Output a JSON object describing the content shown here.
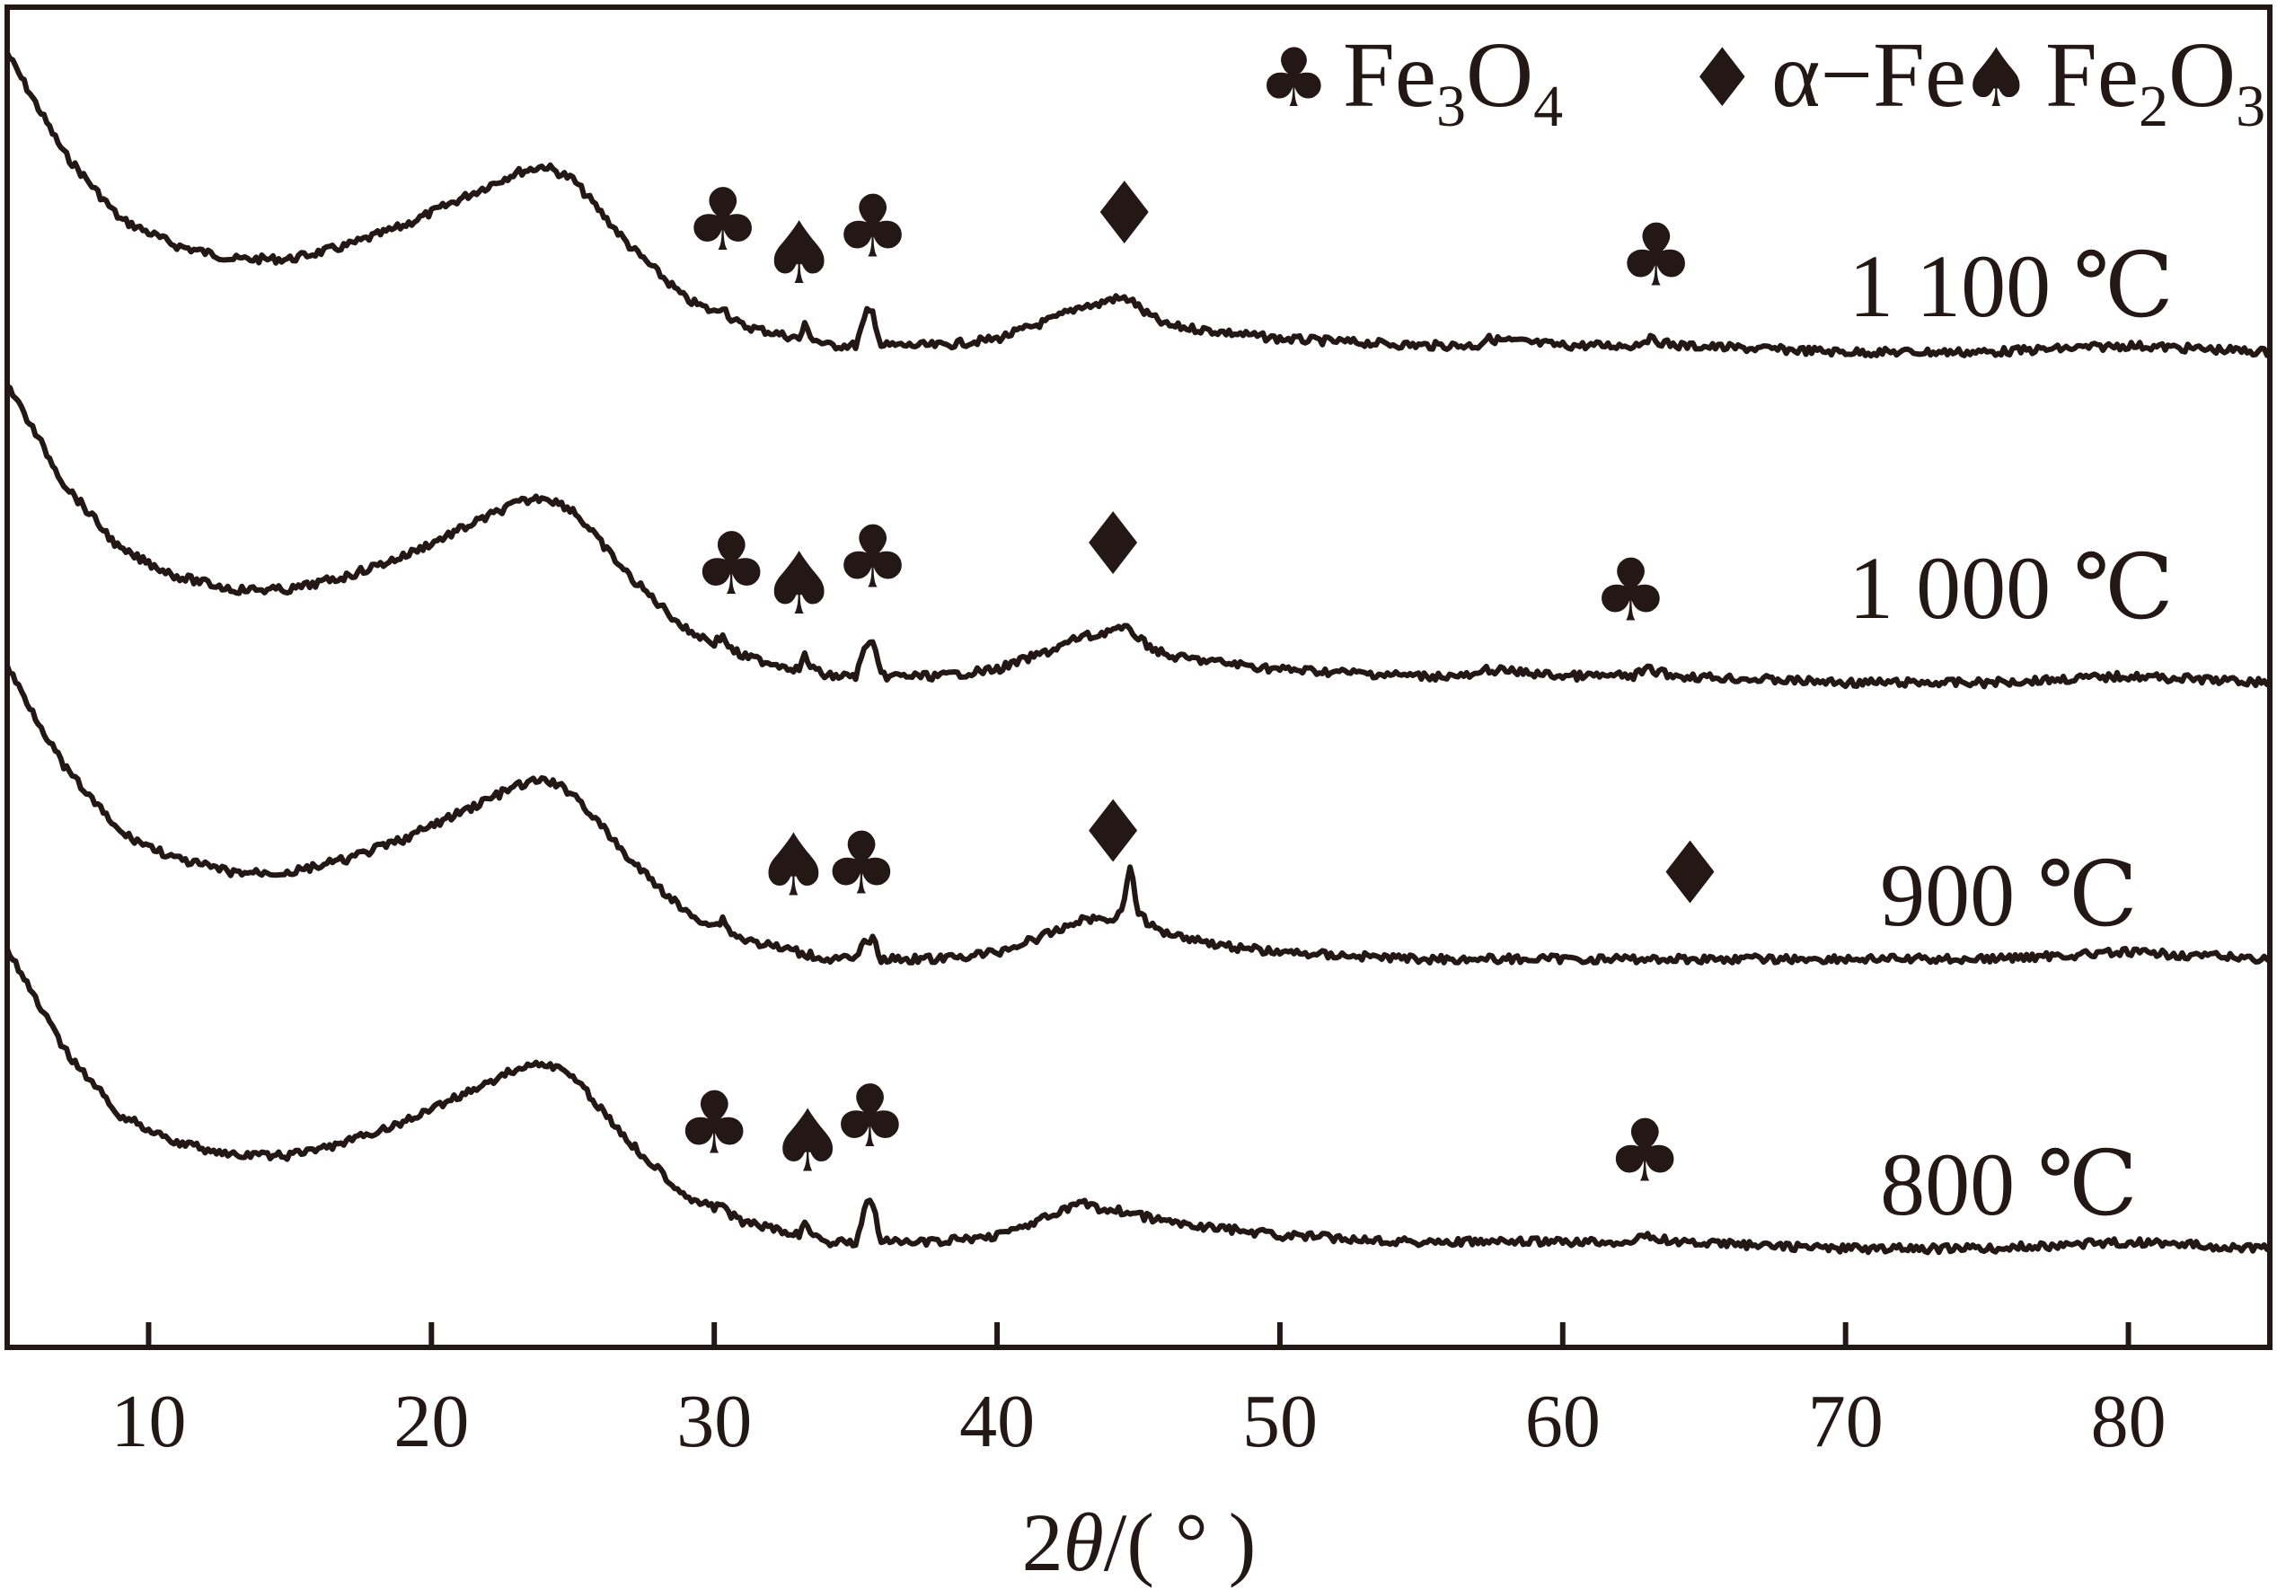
{
  "chart_data": {
    "type": "line",
    "xlabel_prefix": "2",
    "xlabel_var": "θ",
    "xlabel_suffix": "/( ° )",
    "xlim": [
      5,
      85
    ],
    "xticks": [
      10,
      20,
      30,
      40,
      50,
      60,
      70,
      80
    ],
    "xtick_labels": [
      "10",
      "20",
      "30",
      "40",
      "50",
      "60",
      "70",
      "80"
    ],
    "legend": [
      {
        "symbol": "♣",
        "name": "Fe3O4",
        "base": "Fe",
        "sub1": "3",
        "mid": "O",
        "sub2": "4"
      },
      {
        "symbol": "♦",
        "name": "α−Fe",
        "base": "α−Fe",
        "sub1": "",
        "mid": "",
        "sub2": ""
      },
      {
        "symbol": "♠",
        "name": "Fe2O3",
        "base": "Fe",
        "sub1": "2",
        "mid": "O",
        "sub2": "3"
      }
    ],
    "series": [
      {
        "name": "1 100 ℃",
        "x": [
          5,
          7,
          9,
          11,
          13,
          15,
          17,
          19,
          21,
          22,
          23,
          24,
          25,
          26,
          27,
          28,
          29,
          30,
          30.3,
          30.6,
          31,
          32,
          33,
          33.2,
          33.5,
          34,
          35,
          35.4,
          35.6,
          35.9,
          36.5,
          38,
          40,
          42,
          43,
          43.5,
          44,
          44.7,
          45.2,
          46,
          48,
          50,
          55,
          57,
          57.3,
          60,
          62.5,
          63,
          64,
          70,
          75,
          80,
          85
        ],
        "y": [
          0.95,
          0.8,
          0.7,
          0.66,
          0.64,
          0.64,
          0.66,
          0.69,
          0.73,
          0.75,
          0.77,
          0.78,
          0.76,
          0.71,
          0.66,
          0.62,
          0.58,
          0.56,
          0.57,
          0.55,
          0.54,
          0.53,
          0.52,
          0.54,
          0.52,
          0.51,
          0.51,
          0.56,
          0.56,
          0.51,
          0.51,
          0.51,
          0.52,
          0.55,
          0.57,
          0.57,
          0.58,
          0.58,
          0.56,
          0.54,
          0.53,
          0.52,
          0.51,
          0.51,
          0.52,
          0.51,
          0.51,
          0.52,
          0.51,
          0.5,
          0.5,
          0.51,
          0.5
        ]
      },
      {
        "name": "1 000 ℃",
        "x": [
          5,
          7,
          9,
          11,
          13,
          15,
          17,
          19,
          21,
          22,
          23,
          24,
          25,
          26,
          27,
          28,
          29,
          30,
          30.3,
          30.6,
          31,
          32,
          33,
          33.2,
          33.5,
          34,
          35,
          35.4,
          35.6,
          35.9,
          36.5,
          38,
          40,
          42,
          43,
          43.5,
          44,
          44.7,
          45.2,
          46,
          48,
          50,
          55,
          57,
          57.3,
          60,
          62.5,
          63,
          64,
          70,
          75,
          80,
          85
        ],
        "y": [
          0.95,
          0.8,
          0.7,
          0.66,
          0.64,
          0.64,
          0.66,
          0.69,
          0.73,
          0.75,
          0.77,
          0.78,
          0.76,
          0.71,
          0.66,
          0.62,
          0.58,
          0.56,
          0.57,
          0.55,
          0.54,
          0.53,
          0.52,
          0.54,
          0.52,
          0.51,
          0.51,
          0.56,
          0.56,
          0.51,
          0.51,
          0.51,
          0.52,
          0.55,
          0.57,
          0.57,
          0.58,
          0.58,
          0.56,
          0.54,
          0.53,
          0.52,
          0.51,
          0.51,
          0.52,
          0.51,
          0.51,
          0.52,
          0.51,
          0.5,
          0.5,
          0.51,
          0.5
        ]
      },
      {
        "name": "900 ℃",
        "x": [
          5,
          7,
          9,
          11,
          13,
          15,
          17,
          19,
          21,
          22,
          23,
          24,
          25,
          26,
          27,
          28,
          29,
          30,
          30.3,
          30.6,
          31,
          32,
          33,
          34,
          35,
          35.4,
          35.6,
          35.9,
          36.5,
          38,
          40,
          42,
          43,
          44,
          44.4,
          44.7,
          45.0,
          45.4,
          46,
          48,
          50,
          55,
          60,
          65,
          70,
          75,
          80,
          85
        ],
        "y": [
          0.95,
          0.8,
          0.7,
          0.66,
          0.64,
          0.64,
          0.66,
          0.69,
          0.73,
          0.75,
          0.77,
          0.78,
          0.76,
          0.71,
          0.66,
          0.62,
          0.58,
          0.56,
          0.57,
          0.55,
          0.54,
          0.53,
          0.52,
          0.51,
          0.51,
          0.54,
          0.54,
          0.51,
          0.51,
          0.51,
          0.52,
          0.55,
          0.57,
          0.57,
          0.58,
          0.65,
          0.58,
          0.56,
          0.55,
          0.53,
          0.52,
          0.51,
          0.51,
          0.51,
          0.51,
          0.51,
          0.52,
          0.51
        ]
      },
      {
        "name": "800 ℃",
        "x": [
          5,
          7,
          9,
          11,
          13,
          15,
          17,
          19,
          21,
          22,
          23,
          24,
          25,
          26,
          27,
          28,
          29,
          30,
          30.3,
          30.6,
          31,
          32,
          33,
          33.2,
          33.5,
          34,
          35,
          35.4,
          35.6,
          35.9,
          36.5,
          38,
          40,
          42,
          43,
          43.5,
          44,
          45,
          46,
          48,
          50,
          55,
          60,
          62.5,
          63,
          64,
          70,
          75,
          80,
          85
        ],
        "y": [
          0.95,
          0.8,
          0.7,
          0.66,
          0.64,
          0.64,
          0.66,
          0.69,
          0.73,
          0.75,
          0.77,
          0.78,
          0.76,
          0.71,
          0.66,
          0.62,
          0.58,
          0.56,
          0.57,
          0.55,
          0.54,
          0.53,
          0.52,
          0.54,
          0.52,
          0.51,
          0.51,
          0.57,
          0.57,
          0.51,
          0.51,
          0.51,
          0.52,
          0.55,
          0.57,
          0.56,
          0.56,
          0.55,
          0.54,
          0.53,
          0.52,
          0.51,
          0.51,
          0.51,
          0.52,
          0.51,
          0.5,
          0.5,
          0.51,
          0.5
        ]
      }
    ],
    "annotations": [
      {
        "series": "1 100 ℃",
        "markers": [
          {
            "symbol": "♣",
            "x": 30.3
          },
          {
            "symbol": "♠",
            "x": 33.0
          },
          {
            "symbol": "♣",
            "x": 35.6
          },
          {
            "symbol": "♦",
            "x": 44.5
          },
          {
            "symbol": "♣",
            "x": 63.3
          }
        ]
      },
      {
        "series": "1 000 ℃",
        "markers": [
          {
            "symbol": "♣",
            "x": 30.6
          },
          {
            "symbol": "♠",
            "x": 33.0
          },
          {
            "symbol": "♣",
            "x": 35.6
          },
          {
            "symbol": "♦",
            "x": 44.1
          },
          {
            "symbol": "♣",
            "x": 62.4
          }
        ]
      },
      {
        "series": "900 ℃",
        "markers": [
          {
            "symbol": "♠",
            "x": 32.8
          },
          {
            "symbol": "♣",
            "x": 35.2
          },
          {
            "symbol": "♦",
            "x": 44.1
          },
          {
            "symbol": "♦",
            "x": 64.5
          }
        ]
      },
      {
        "series": "800 ℃",
        "markers": [
          {
            "symbol": "♣",
            "x": 30.0
          },
          {
            "symbol": "♠",
            "x": 33.3
          },
          {
            "symbol": "♣",
            "x": 35.5
          },
          {
            "symbol": "♣",
            "x": 62.9
          }
        ]
      }
    ],
    "grid": false,
    "legend_position": "top-right",
    "line_color": "#231815"
  }
}
